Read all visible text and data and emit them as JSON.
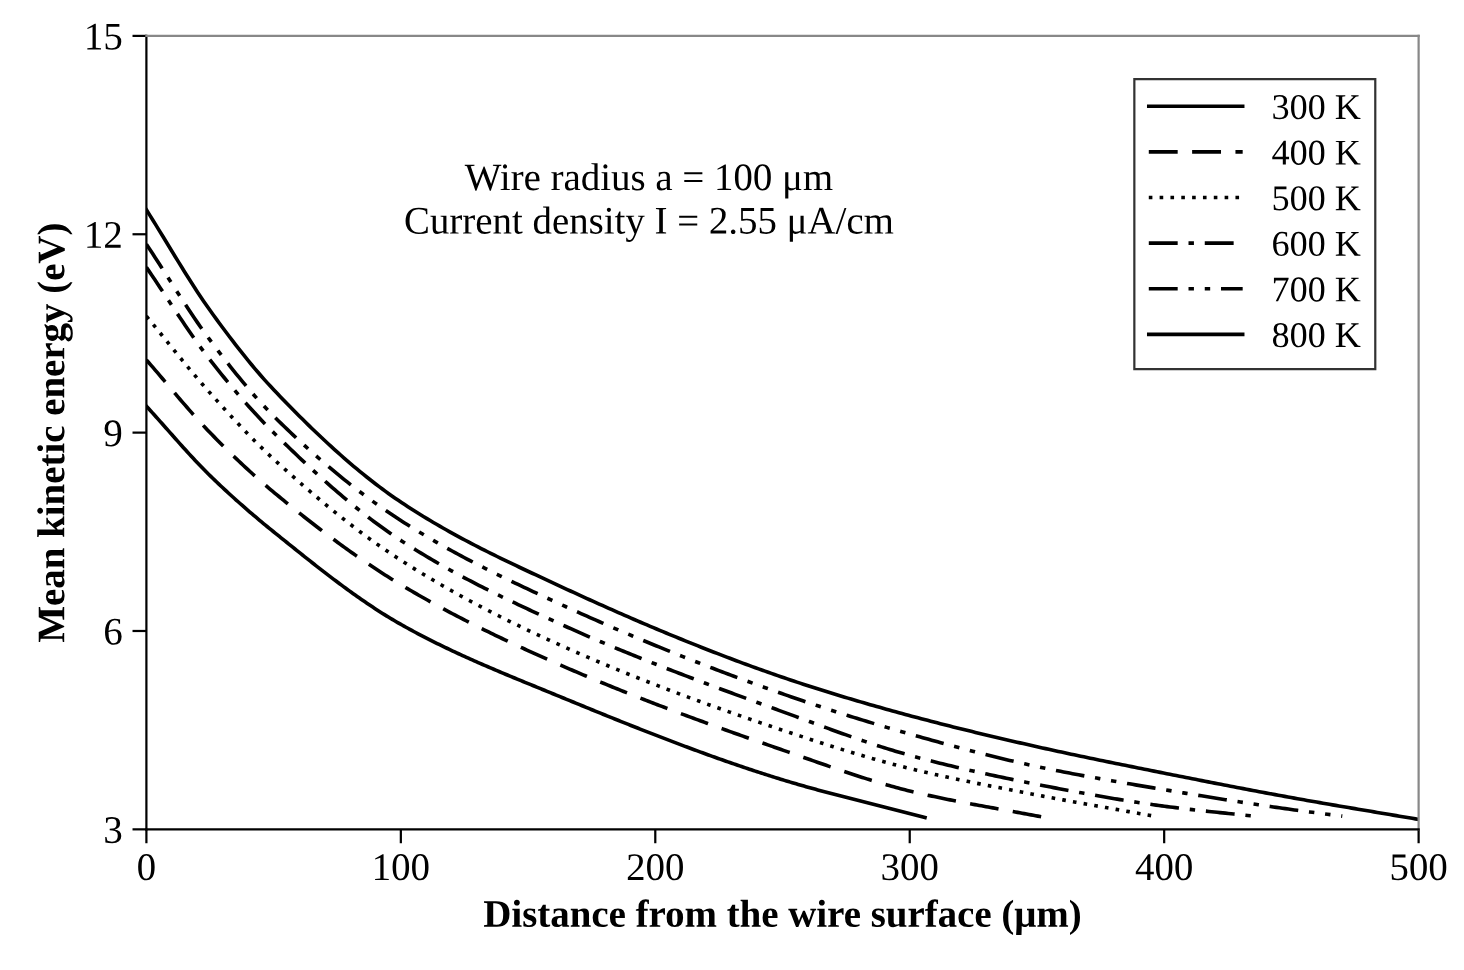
{
  "chart_data": {
    "type": "line",
    "xlabel": "Distance from the wire surface (μm)",
    "ylabel": "Mean kinetic energy (eV)",
    "xlim": [
      0,
      500
    ],
    "xticks": [
      0,
      100,
      200,
      300,
      400,
      500
    ],
    "ylim": [
      3,
      15
    ],
    "yticks": [
      3,
      6,
      9,
      12,
      15
    ],
    "grid": false,
    "legend": "top right",
    "marker": "none",
    "annotations": [
      "Wire radius a = 100 μm",
      "Current density I = 2.55 μA/cm"
    ],
    "series": [
      {
        "name": "300 K",
        "color": "#000000",
        "line_style": "solid",
        "x": [
          0,
          25,
          50,
          100,
          163,
          250,
          306
        ],
        "values": [
          9.4,
          8.35,
          7.5,
          6.1,
          5.0,
          3.75,
          3.18
        ]
      },
      {
        "name": "400 K",
        "color": "#000000",
        "line_style": "dashed",
        "x": [
          0,
          25,
          50,
          100,
          163,
          250,
          300,
          353
        ],
        "values": [
          10.1,
          9.0,
          8.1,
          6.7,
          5.48,
          4.2,
          3.58,
          3.18
        ]
      },
      {
        "name": "500 K",
        "color": "#000000",
        "line_style": "dotted",
        "x": [
          0,
          25,
          50,
          100,
          163,
          250,
          300,
          350,
          396
        ],
        "values": [
          10.76,
          9.6,
          8.6,
          7.07,
          5.78,
          4.5,
          3.92,
          3.52,
          3.2
        ]
      },
      {
        "name": "600 K",
        "color": "#000000",
        "line_style": "dashdot",
        "x": [
          0,
          25,
          50,
          100,
          163,
          250,
          300,
          350,
          400,
          435
        ],
        "values": [
          11.5,
          10.1,
          9.0,
          7.37,
          6.1,
          4.78,
          4.12,
          3.68,
          3.35,
          3.2
        ]
      },
      {
        "name": "700 K",
        "color": "#000000",
        "line_style": "dashdotdot",
        "x": [
          0,
          25,
          50,
          100,
          163,
          250,
          302,
          350,
          400,
          450,
          470
        ],
        "values": [
          11.85,
          10.4,
          9.25,
          7.67,
          6.4,
          5.05,
          4.42,
          3.95,
          3.6,
          3.3,
          3.2
        ]
      },
      {
        "name": "800 K",
        "color": "#000000",
        "line_style": "solid",
        "x": [
          0,
          25,
          50,
          100,
          163,
          250,
          300,
          350,
          400,
          450,
          500
        ],
        "values": [
          12.37,
          10.85,
          9.65,
          7.95,
          6.67,
          5.3,
          4.72,
          4.25,
          3.85,
          3.48,
          3.15
        ]
      }
    ]
  }
}
